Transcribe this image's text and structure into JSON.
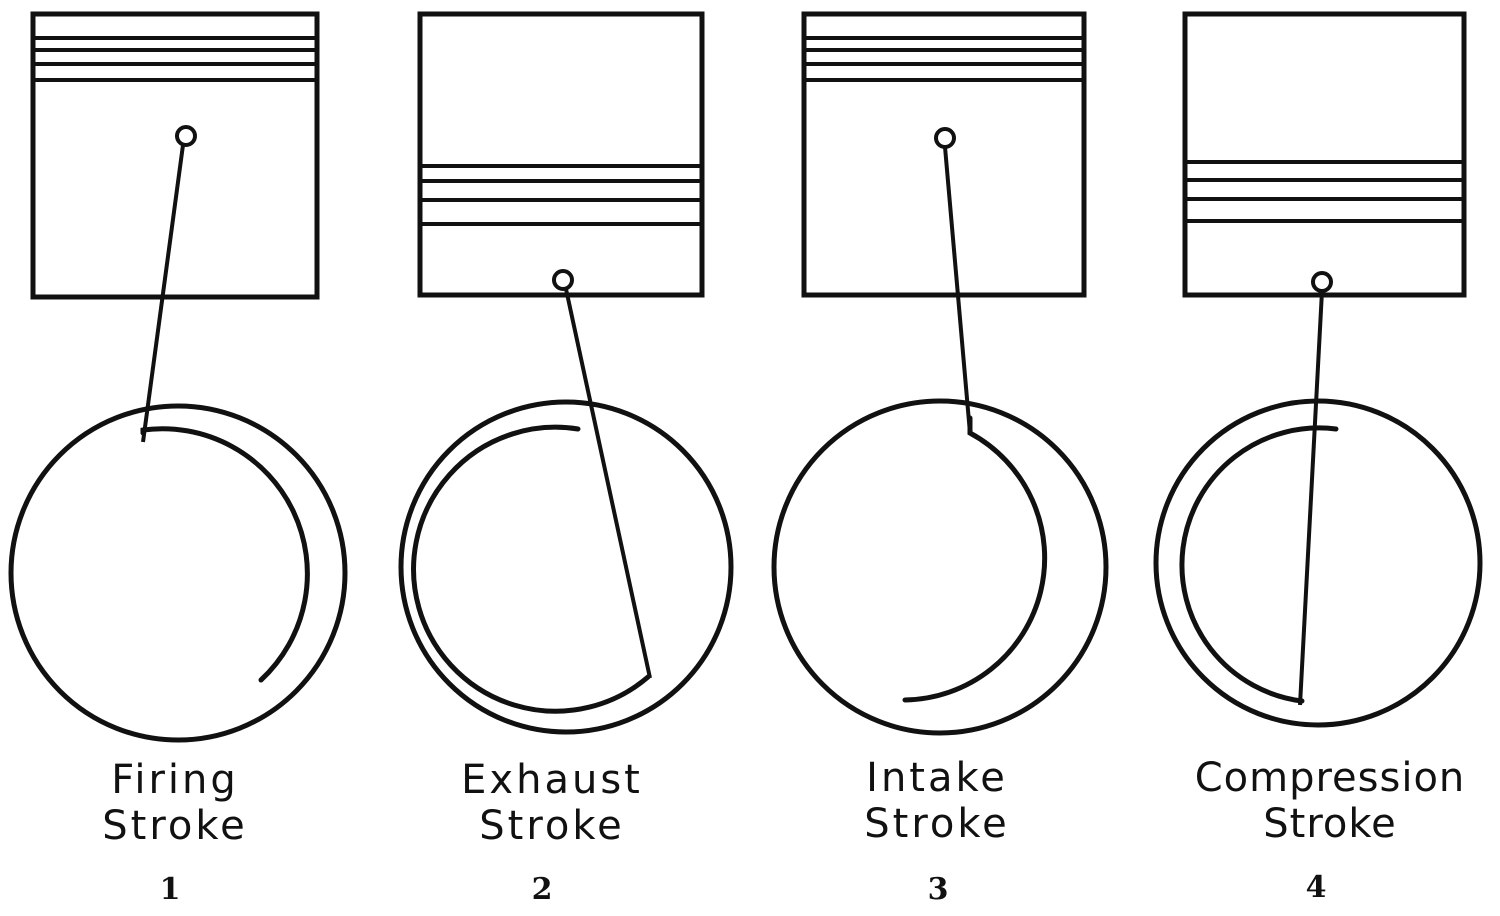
{
  "strokes": [
    {
      "line1": "Firing",
      "line2": "Stroke",
      "number": "1"
    },
    {
      "line1": "Exhaust",
      "line2": "Stroke",
      "number": "2"
    },
    {
      "line1": "Intake",
      "line2": "Stroke",
      "number": "3"
    },
    {
      "line1": "Compression",
      "line2": "Stroke",
      "number": "4"
    }
  ],
  "colors": {
    "ink": "#111111",
    "paper": "#ffffff"
  }
}
